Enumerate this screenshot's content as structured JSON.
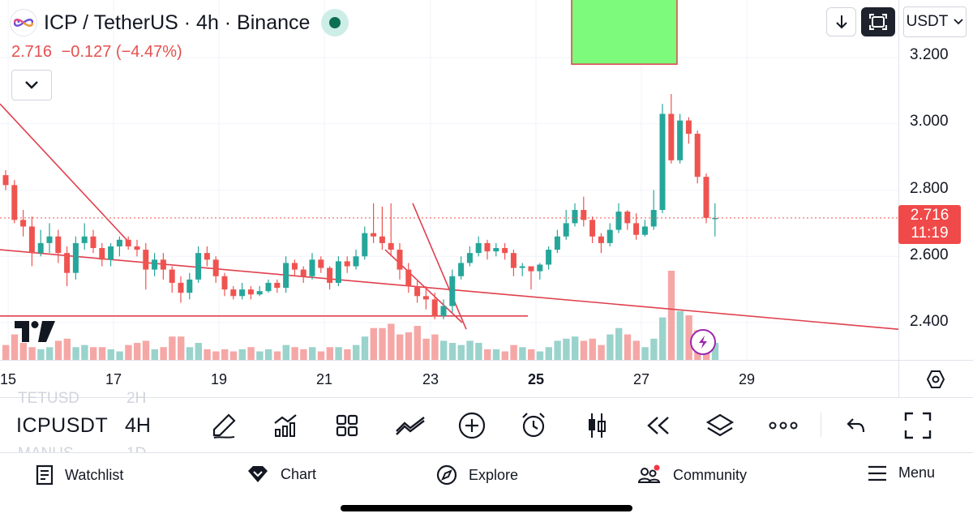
{
  "header": {
    "title": "ICP / TetherUS · 4h · Binance",
    "last_price": "2.716",
    "change": "−0.127",
    "change_pct": "(−4.47%)",
    "currency": "USDT"
  },
  "colors": {
    "up": "#26a69a",
    "down": "#ef5350",
    "up_volume": "#9ad3cc",
    "down_volume": "#f5a7a6",
    "trendline": "#e0404d",
    "highlight_box": "#7dfa7b",
    "price_tag": "#f04949"
  },
  "price_axis": {
    "ticks": [
      "3.200",
      "3.000",
      "2.800",
      "2.600",
      "2.400"
    ],
    "current_price": "2.716",
    "countdown": "11:19"
  },
  "time_axis": {
    "labels": [
      "15",
      "17",
      "19",
      "21",
      "23",
      "25",
      "27",
      "29"
    ],
    "bold_label": "25"
  },
  "chart_data": {
    "type": "candlestick",
    "symbol": "ICP / TetherUS",
    "interval": "4h",
    "ylim": [
      2.25,
      3.32
    ],
    "x_ticks": [
      "15",
      "17",
      "19",
      "21",
      "23",
      "25",
      "27",
      "29"
    ],
    "y_ticks": [
      3.2,
      3.0,
      2.8,
      2.6,
      2.4
    ],
    "current_price": 2.716,
    "candles": [
      [
        2.845,
        2.815,
        2.86,
        2.8
      ],
      [
        2.815,
        2.71,
        2.83,
        2.7
      ],
      [
        2.71,
        2.69,
        2.74,
        2.66
      ],
      [
        2.69,
        2.61,
        2.72,
        2.57
      ],
      [
        2.61,
        2.64,
        2.68,
        2.6
      ],
      [
        2.64,
        2.66,
        2.7,
        2.61
      ],
      [
        2.66,
        2.61,
        2.68,
        2.58
      ],
      [
        2.61,
        2.55,
        2.63,
        2.51
      ],
      [
        2.55,
        2.64,
        2.66,
        2.53
      ],
      [
        2.64,
        2.66,
        2.7,
        2.62
      ],
      [
        2.66,
        2.625,
        2.68,
        2.61
      ],
      [
        2.625,
        2.59,
        2.64,
        2.57
      ],
      [
        2.59,
        2.63,
        2.64,
        2.57
      ],
      [
        2.63,
        2.65,
        2.66,
        2.6
      ],
      [
        2.65,
        2.63,
        2.66,
        2.62
      ],
      [
        2.63,
        2.62,
        2.65,
        2.6
      ],
      [
        2.62,
        2.56,
        2.64,
        2.5
      ],
      [
        2.56,
        2.59,
        2.61,
        2.54
      ],
      [
        2.59,
        2.56,
        2.61,
        2.53
      ],
      [
        2.56,
        2.52,
        2.57,
        2.49
      ],
      [
        2.52,
        2.49,
        2.54,
        2.46
      ],
      [
        2.49,
        2.53,
        2.55,
        2.47
      ],
      [
        2.53,
        2.61,
        2.63,
        2.52
      ],
      [
        2.61,
        2.59,
        2.63,
        2.57
      ],
      [
        2.59,
        2.54,
        2.6,
        2.52
      ],
      [
        2.54,
        2.5,
        2.55,
        2.48
      ],
      [
        2.5,
        2.48,
        2.51,
        2.47
      ],
      [
        2.48,
        2.5,
        2.52,
        2.47
      ],
      [
        2.5,
        2.485,
        2.51,
        2.47
      ],
      [
        2.485,
        2.495,
        2.51,
        2.48
      ],
      [
        2.495,
        2.52,
        2.53,
        2.49
      ],
      [
        2.52,
        2.505,
        2.53,
        2.49
      ],
      [
        2.505,
        2.58,
        2.6,
        2.49
      ],
      [
        2.58,
        2.56,
        2.59,
        2.54
      ],
      [
        2.56,
        2.54,
        2.57,
        2.52
      ],
      [
        2.54,
        2.59,
        2.61,
        2.53
      ],
      [
        2.59,
        2.565,
        2.6,
        2.55
      ],
      [
        2.565,
        2.52,
        2.57,
        2.5
      ],
      [
        2.52,
        2.585,
        2.6,
        2.51
      ],
      [
        2.585,
        2.57,
        2.6,
        2.55
      ],
      [
        2.57,
        2.6,
        2.62,
        2.56
      ],
      [
        2.6,
        2.67,
        2.69,
        2.59
      ],
      [
        2.67,
        2.66,
        2.76,
        2.64
      ],
      [
        2.66,
        2.64,
        2.75,
        2.62
      ],
      [
        2.64,
        2.62,
        2.76,
        2.6
      ],
      [
        2.62,
        2.56,
        2.64,
        2.53
      ],
      [
        2.56,
        2.51,
        2.58,
        2.49
      ],
      [
        2.51,
        2.48,
        2.53,
        2.46
      ],
      [
        2.48,
        2.47,
        2.51,
        2.44
      ],
      [
        2.47,
        2.42,
        2.49,
        2.41
      ],
      [
        2.42,
        2.45,
        2.47,
        2.41
      ],
      [
        2.45,
        2.54,
        2.56,
        2.43
      ],
      [
        2.54,
        2.58,
        2.6,
        2.53
      ],
      [
        2.58,
        2.61,
        2.63,
        2.57
      ],
      [
        2.61,
        2.64,
        2.66,
        2.6
      ],
      [
        2.64,
        2.615,
        2.65,
        2.59
      ],
      [
        2.615,
        2.625,
        2.64,
        2.6
      ],
      [
        2.625,
        2.61,
        2.64,
        2.59
      ],
      [
        2.61,
        2.565,
        2.62,
        2.54
      ],
      [
        2.565,
        2.57,
        2.58,
        2.54
      ],
      [
        2.57,
        2.555,
        2.57,
        2.5
      ],
      [
        2.555,
        2.575,
        2.58,
        2.53
      ],
      [
        2.575,
        2.62,
        2.63,
        2.56
      ],
      [
        2.62,
        2.66,
        2.68,
        2.61
      ],
      [
        2.66,
        2.7,
        2.74,
        2.65
      ],
      [
        2.7,
        2.74,
        2.76,
        2.69
      ],
      [
        2.74,
        2.71,
        2.78,
        2.69
      ],
      [
        2.71,
        2.66,
        2.72,
        2.64
      ],
      [
        2.66,
        2.64,
        2.67,
        2.61
      ],
      [
        2.64,
        2.68,
        2.7,
        2.63
      ],
      [
        2.68,
        2.735,
        2.76,
        2.67
      ],
      [
        2.735,
        2.7,
        2.74,
        2.68
      ],
      [
        2.7,
        2.665,
        2.73,
        2.65
      ],
      [
        2.665,
        2.69,
        2.71,
        2.66
      ],
      [
        2.69,
        2.74,
        2.8,
        2.68
      ],
      [
        2.74,
        3.03,
        3.06,
        2.73
      ],
      [
        3.03,
        2.89,
        3.09,
        2.88
      ],
      [
        2.89,
        3.01,
        3.03,
        2.88
      ],
      [
        3.01,
        2.97,
        3.02,
        2.94
      ],
      [
        2.97,
        2.84,
        2.98,
        2.82
      ],
      [
        2.84,
        2.716,
        2.85,
        2.7
      ],
      [
        2.716,
        2.716,
        2.76,
        2.66
      ]
    ],
    "volumes": [
      0.35,
      0.6,
      0.4,
      0.3,
      0.25,
      0.3,
      0.45,
      0.5,
      0.3,
      0.35,
      0.3,
      0.3,
      0.25,
      0.2,
      0.35,
      0.4,
      0.45,
      0.25,
      0.3,
      0.55,
      0.55,
      0.3,
      0.4,
      0.25,
      0.2,
      0.25,
      0.2,
      0.25,
      0.3,
      0.2,
      0.25,
      0.2,
      0.35,
      0.3,
      0.25,
      0.3,
      0.2,
      0.3,
      0.3,
      0.25,
      0.35,
      0.55,
      0.75,
      0.75,
      0.85,
      0.6,
      0.65,
      0.8,
      0.5,
      0.6,
      0.45,
      0.4,
      0.35,
      0.45,
      0.4,
      0.25,
      0.25,
      0.2,
      0.35,
      0.3,
      0.25,
      0.2,
      0.3,
      0.45,
      0.5,
      0.55,
      0.45,
      0.5,
      0.35,
      0.6,
      0.75,
      0.6,
      0.45,
      0.3,
      0.5,
      1.0,
      2.1,
      1.15,
      1.05,
      0.7,
      0.45,
      0.4
    ],
    "drawings": {
      "trendlines": [
        {
          "from": [
            "start",
            3.06
          ],
          "to": [
            "Aug 17",
            2.64
          ]
        },
        {
          "from": [
            "start",
            2.62
          ],
          "to": [
            "end",
            2.38
          ]
        },
        {
          "from": [
            "Aug 23 early",
            2.76
          ],
          "to": [
            "Aug 23 late",
            2.38
          ]
        },
        {
          "from": [
            "Aug 22 late",
            2.62
          ],
          "to": [
            "Aug 23 late",
            2.4
          ]
        }
      ],
      "horizontal_line": 2.42,
      "highlight_box": {
        "price_from": 3.32,
        "price_to": 3.18
      }
    }
  },
  "toolbar": {
    "symbol": "ICPUSDT",
    "interval": "4H",
    "ghost_prev_symbol": "TETUSD",
    "ghost_prev_interval": "2H",
    "ghost_next_symbol": "MANUS",
    "ghost_next_interval": "1D"
  },
  "nav": {
    "watchlist": "Watchlist",
    "chart": "Chart",
    "explore": "Explore",
    "community": "Community",
    "menu": "Menu"
  }
}
